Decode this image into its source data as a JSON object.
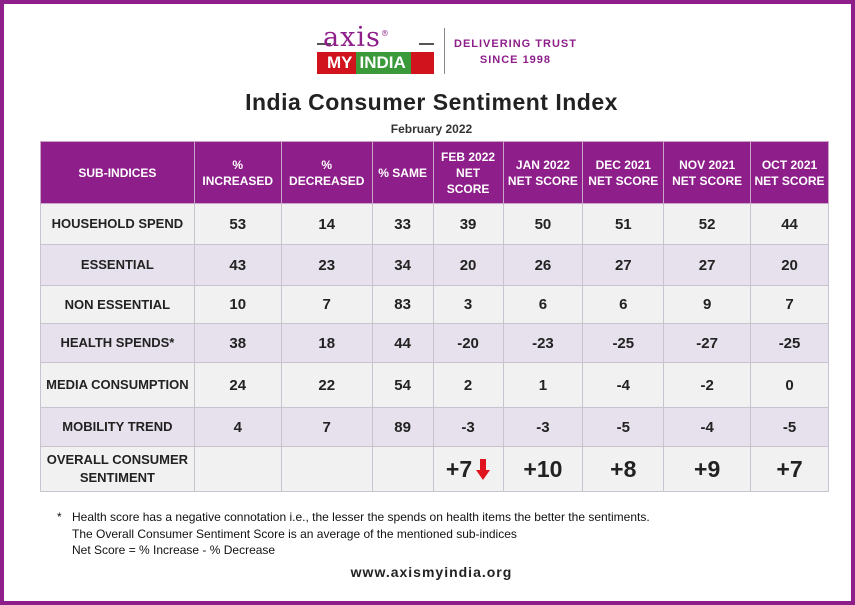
{
  "logo": {
    "name_top": "axis",
    "reg": "®",
    "name_my": "MY",
    "name_india": "INDIA",
    "tagline1": "DELIVERING TRUST",
    "tagline2": "SINCE 1998"
  },
  "title": "India Consumer Sentiment Index",
  "subtitle": "February  2022",
  "table": {
    "headers": [
      "SUB-INDICES",
      "% INCREASED",
      "% DECREASED",
      "% SAME",
      "FEB 2022 NET SCORE",
      "JAN 2022 NET SCORE",
      "DEC 2021 NET SCORE",
      "NOV 2021 NET SCORE",
      "OCT 2021 NET SCORE"
    ],
    "rows": [
      {
        "label": "HOUSEHOLD SPEND",
        "inc": "53",
        "dec": "14",
        "same": "33",
        "feb": "39",
        "jan": "50",
        "dec21": "51",
        "nov": "52",
        "oct": "44"
      },
      {
        "label": "ESSENTIAL",
        "inc": "43",
        "dec": "23",
        "same": "34",
        "feb": "20",
        "jan": "26",
        "dec21": "27",
        "nov": "27",
        "oct": "20"
      },
      {
        "label": "NON  ESSENTIAL",
        "inc": "10",
        "dec": "7",
        "same": "83",
        "feb": "3",
        "jan": "6",
        "dec21": "6",
        "nov": "9",
        "oct": "7"
      },
      {
        "label": "HEALTH SPENDS*",
        "inc": "38",
        "dec": "18",
        "same": "44",
        "feb": "-20",
        "jan": "-23",
        "dec21": "-25",
        "nov": "-27",
        "oct": "-25"
      },
      {
        "label": "MEDIA CONSUMPTION",
        "inc": "24",
        "dec": "22",
        "same": "54",
        "feb": "2",
        "jan": "1",
        "dec21": "-4",
        "nov": "-2",
        "oct": "0"
      },
      {
        "label": "MOBILITY TREND",
        "inc": "4",
        "dec": "7",
        "same": "89",
        "feb": "-3",
        "jan": "-3",
        "dec21": "-5",
        "nov": "-4",
        "oct": "-5"
      }
    ],
    "overall": {
      "label": "OVERALL CONSUMER SENTIMENT",
      "feb": "+7",
      "jan": "+10",
      "dec21": "+8",
      "nov": "+9",
      "oct": "+7",
      "trend": "down"
    }
  },
  "notes": {
    "asterisk": "*",
    "line1": "Health score has a negative connotation i.e., the lesser the spends on health items the better the sentiments.",
    "line2": "The Overall Consumer Sentiment Score is an average of the mentioned sub-indices",
    "line3": "Net Score = % Increase - % Decrease"
  },
  "website": "www.axismyindia.org",
  "colors": {
    "brand_purple": "#8e1e8a",
    "row_light": "#f1f1f1",
    "row_lavender": "#e6e1ec",
    "arrow_red": "#e0141c"
  }
}
